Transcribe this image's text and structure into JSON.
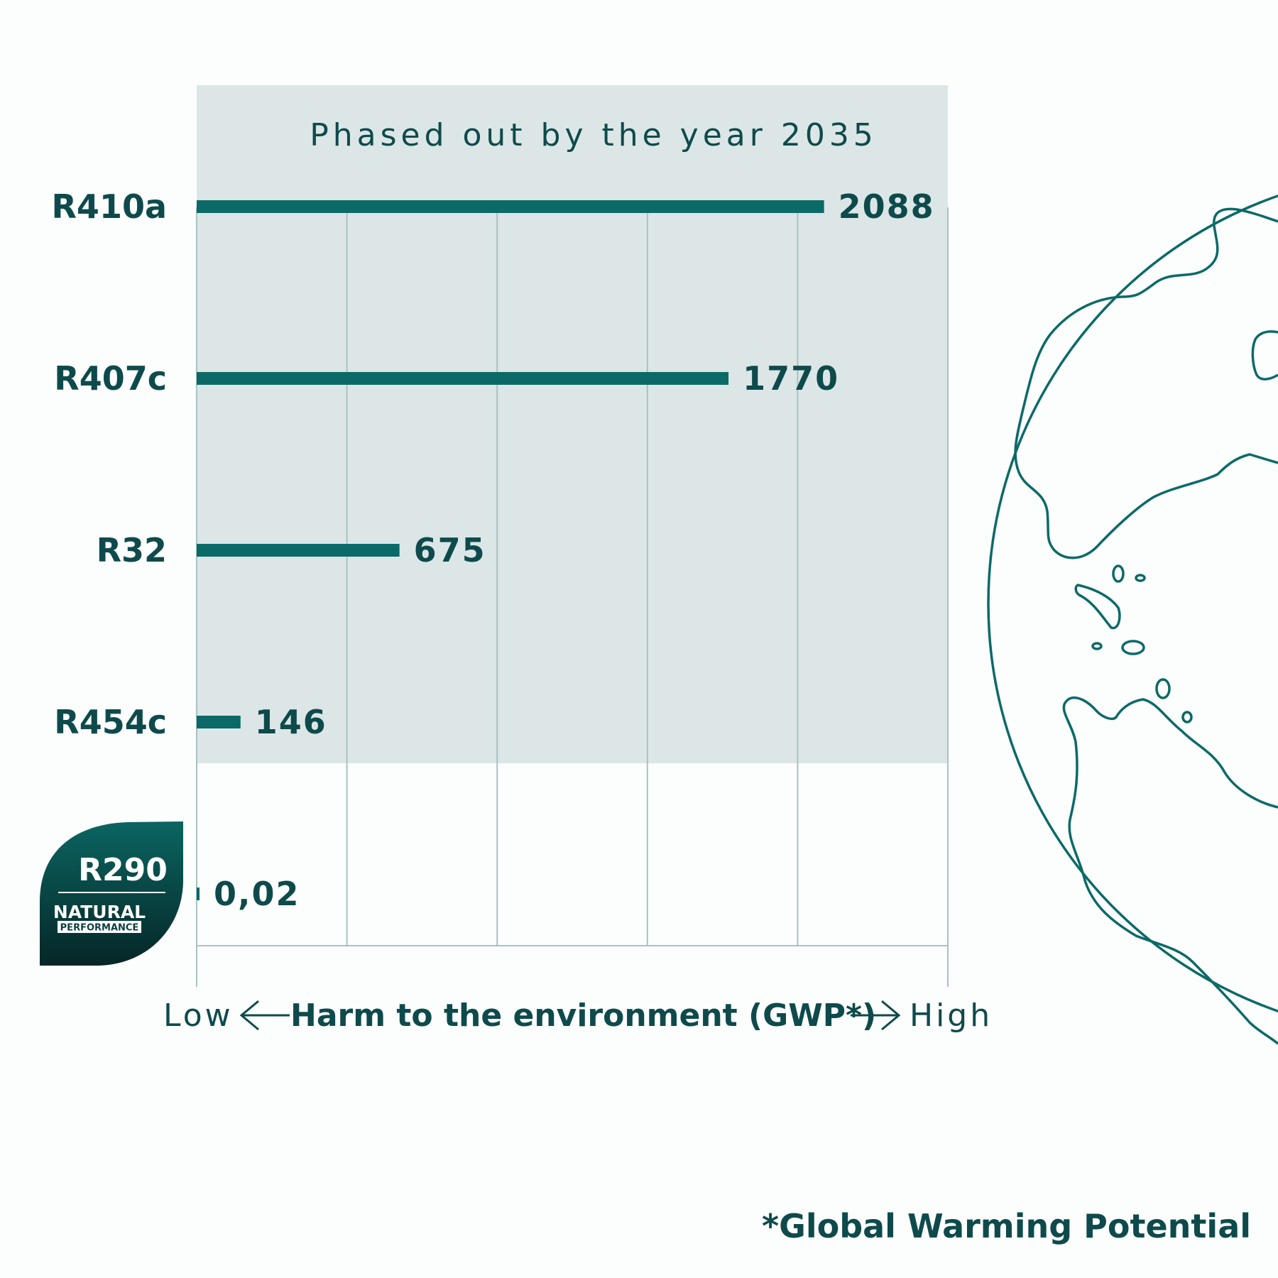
{
  "colors": {
    "accent": "#0b6a68",
    "text": "#0e4a4c",
    "band": "#dce6e6",
    "grid": "#a9c2c2",
    "badge_top": "#0b6562",
    "badge_bottom": "#052626"
  },
  "chart_data": {
    "type": "bar",
    "orientation": "horizontal",
    "phase_out_title": "Phased out by the year 2035",
    "categories": [
      "R410a",
      "R407c",
      "R32",
      "R454c",
      "R290"
    ],
    "values": [
      2088,
      1770,
      675,
      146,
      0.02
    ],
    "value_labels": [
      "2088",
      "1770",
      "675",
      "146",
      "0,02"
    ],
    "phased_out_count": 4,
    "xlim": [
      0,
      2500
    ],
    "gridlines": [
      500,
      1000,
      1500,
      2000,
      2500
    ],
    "grid": true,
    "x_axis": {
      "low": "Low",
      "label": "Harm to the environment (GWP*)",
      "high": "High"
    }
  },
  "badge": {
    "name": "R290",
    "line1": "NATURAL",
    "line2": "PERFORMANCE"
  },
  "footnote": "*Global Warming Potential",
  "decoration": {
    "globe_icon": "globe-outline-icon"
  }
}
